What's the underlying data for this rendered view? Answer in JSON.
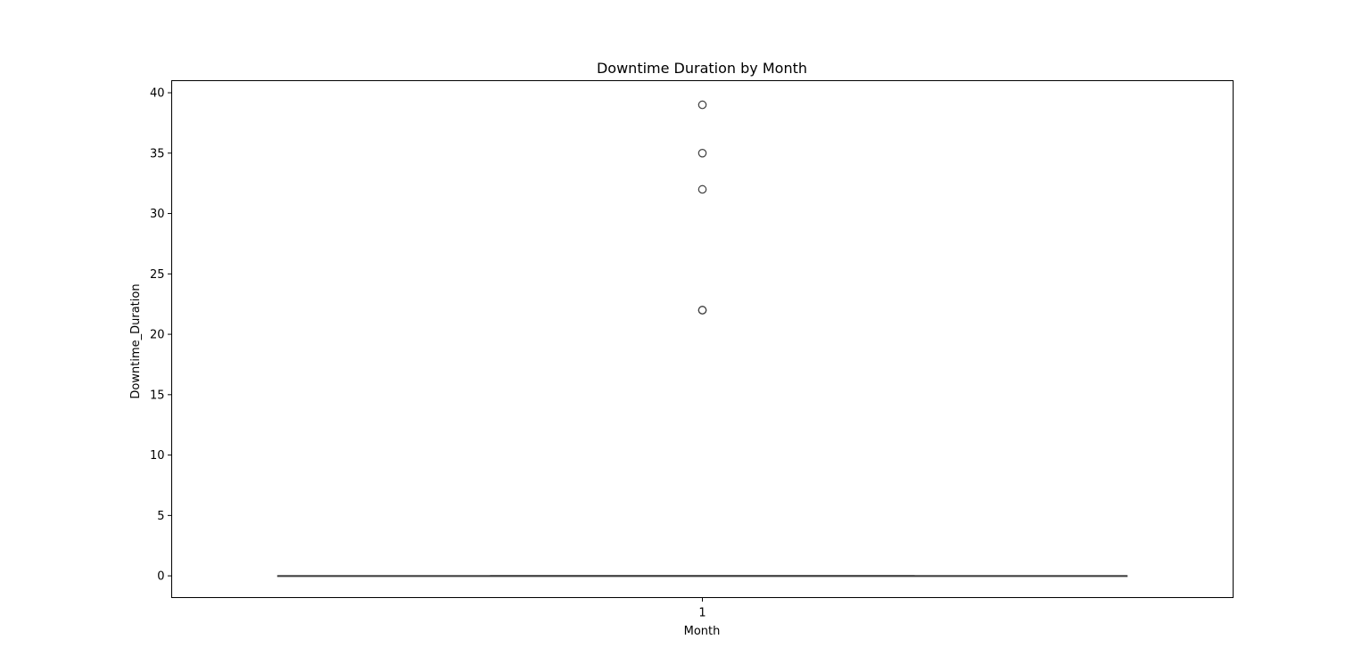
{
  "chart_data": {
    "type": "box",
    "title": "Downtime Duration by Month",
    "xlabel": "Month",
    "ylabel": "Downtime_Duration",
    "categories": [
      "1"
    ],
    "ylim": [
      -1.8,
      41
    ],
    "yticks": [
      0,
      5,
      10,
      15,
      20,
      25,
      30,
      35,
      40
    ],
    "grid": false,
    "boxes": [
      {
        "category": "1",
        "min": 0,
        "q1": 0,
        "median": 0,
        "q3": 0,
        "max": 0,
        "outliers": [
          22,
          22,
          32,
          35,
          39
        ]
      }
    ],
    "colors": {
      "box_line": "#3f3f3f",
      "outlier_edge": "#3f3f3f",
      "axes": "#000000"
    }
  }
}
